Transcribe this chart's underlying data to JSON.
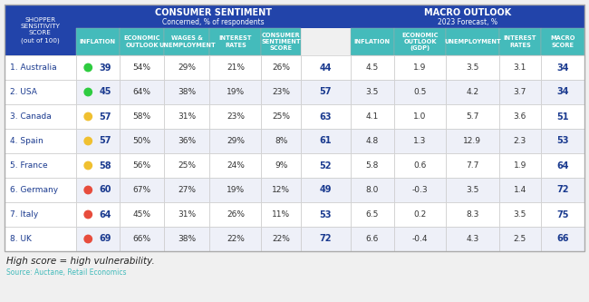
{
  "countries": [
    "1. Australia",
    "2. USA",
    "3. Canada",
    "4. Spain",
    "5. France",
    "6. Germany",
    "7. Italy",
    "8. UK"
  ],
  "dot_colors": [
    "#2ecc40",
    "#2ecc40",
    "#f0c030",
    "#f0c030",
    "#f0c030",
    "#e74c3c",
    "#e74c3c",
    "#e74c3c"
  ],
  "shopper_scores": [
    "39",
    "45",
    "57",
    "57",
    "58",
    "60",
    "64",
    "69"
  ],
  "inflation_pct": [
    "54%",
    "64%",
    "58%",
    "50%",
    "56%",
    "67%",
    "45%",
    "66%"
  ],
  "economic_outlook_pct": [
    "29%",
    "38%",
    "31%",
    "36%",
    "25%",
    "27%",
    "31%",
    "38%"
  ],
  "wages_unemployment_pct": [
    "21%",
    "19%",
    "23%",
    "29%",
    "24%",
    "19%",
    "26%",
    "22%"
  ],
  "interest_rates_pct": [
    "26%",
    "23%",
    "25%",
    "8%",
    "9%",
    "12%",
    "11%",
    "22%"
  ],
  "consumer_sentiment_score": [
    "44",
    "57",
    "63",
    "61",
    "52",
    "49",
    "53",
    "72"
  ],
  "macro_inflation": [
    "4.5",
    "3.5",
    "4.1",
    "4.8",
    "5.8",
    "8.0",
    "6.5",
    "6.6"
  ],
  "macro_eco_outlook": [
    "1.9",
    "0.5",
    "1.0",
    "1.3",
    "0.6",
    "-0.3",
    "0.2",
    "-0.4"
  ],
  "macro_unemployment": [
    "3.5",
    "4.2",
    "5.7",
    "12.9",
    "7.7",
    "3.5",
    "8.3",
    "4.3"
  ],
  "macro_interest_rates": [
    "3.1",
    "3.7",
    "3.6",
    "2.3",
    "1.9",
    "1.4",
    "3.5",
    "2.5"
  ],
  "macro_score": [
    "34",
    "34",
    "51",
    "53",
    "64",
    "72",
    "75",
    "66"
  ],
  "header_bg_dark": "#2244aa",
  "header_bg_teal": "#44bbbb",
  "row_bg_even": "#ffffff",
  "row_bg_odd": "#eef0f8",
  "text_dark": "#1a3a8f",
  "text_normal": "#333333",
  "text_white": "#ffffff",
  "border_color": "#cccccc",
  "bg_color": "#f0f0f0",
  "title_consumer": "CONSUMER SENTIMENT",
  "subtitle_consumer": "Concerned, % of respondents",
  "title_macro": "MACRO OUTLOOK",
  "subtitle_macro": "2023 Forecast, %",
  "shopper_header": "SHOPPER\nSENSITIVITY\nSCORE\n(out of 100)",
  "col_headers_consumer": [
    "INFLATION",
    "ECONOMIC\nOUTLOOK",
    "WAGES &\nUNEMPLOYMENT",
    "INTEREST\nRATES",
    "CONSUMER\nSENTIMENT\nSCORE"
  ],
  "col_headers_macro": [
    "INFLATION",
    "ECONOMIC\nOUTLOOK\n(GDP)",
    "UNEMPLOYMENT",
    "INTEREST\nRATES",
    "MACRO\nSCORE"
  ],
  "footer_text": "High score = high vulnerability.",
  "source_text": "Source: Auctane, Retail Economics",
  "fig_width": 6.5,
  "fig_height": 3.33,
  "dpi": 100
}
